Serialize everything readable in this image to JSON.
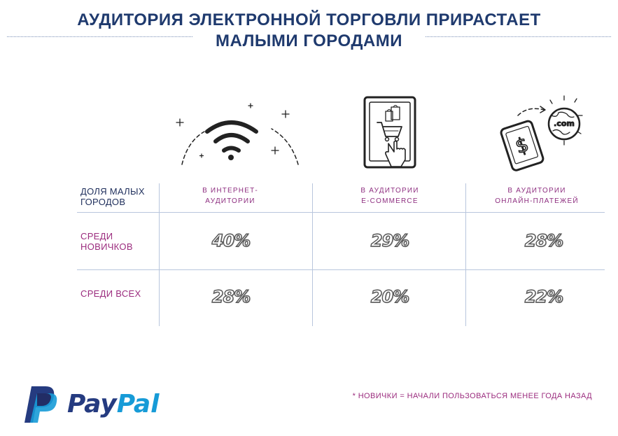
{
  "title": {
    "line1": "АУДИТОРИЯ ЭЛЕКТРОННОЙ ТОРГОВЛИ ПРИРАСТАЕТ",
    "line2": "МАЛЫМИ ГОРОДАМИ"
  },
  "icons": {
    "col1": "wifi-icon",
    "col2": "tablet-shopping-icon",
    "col3": "phone-globe-icon",
    "com_text": ".com",
    "dollar_text": "$"
  },
  "table": {
    "header_label": "ДОЛЯ МАЛЫХ ГОРОДОВ",
    "header_label_line1": "ДОЛЯ МАЛЫХ",
    "header_label_line2": "ГОРОДОВ",
    "columns": [
      {
        "line1": "В ИНТЕРНЕТ-",
        "line2": "АУДИТОРИИ"
      },
      {
        "line1": "В АУДИТОРИИ",
        "line2": "E-COMMERCE"
      },
      {
        "line1": "В АУДИТОРИИ",
        "line2": "ОНЛАЙН-ПЛАТЕЖЕЙ"
      }
    ],
    "rows": [
      {
        "label_line1": "СРЕДИ",
        "label_line2": "НОВИЧКОВ",
        "values": [
          "40%",
          "29%",
          "28%"
        ]
      },
      {
        "label_line1": "СРЕДИ ВСЕХ",
        "label_line2": "",
        "values": [
          "28%",
          "20%",
          "22%"
        ]
      }
    ]
  },
  "footnote": "* НОВИЧКИ = НАЧАЛИ ПОЛЬЗОВАТЬСЯ МЕНЕЕ ГОДА НАЗАД",
  "brand": {
    "part1": "Pay",
    "part2": "Pal"
  },
  "colors": {
    "title": "#1f3a6e",
    "accent": "#9b2c7e",
    "grid": "#b8c6dd",
    "paypal_dark": "#253b80",
    "paypal_light": "#179bd7"
  }
}
